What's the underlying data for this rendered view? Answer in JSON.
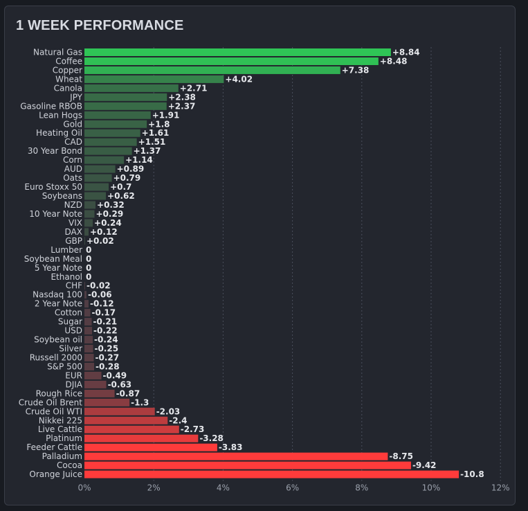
{
  "header": {
    "title": "1 WEEK PERFORMANCE"
  },
  "colors": {
    "positive_max": "#2ed158",
    "positive_min": "#3b4a42",
    "negative_min": "#4a3d44",
    "negative_max": "#ff3b3b",
    "grid": "#4a4f5c",
    "background": "#23262e"
  },
  "chart_data": {
    "type": "bar",
    "orientation": "horizontal",
    "title": "1 WEEK PERFORMANCE",
    "xlabel": "",
    "ylabel": "",
    "xlim": [
      0,
      12
    ],
    "x_ticks": [
      "0%",
      "2%",
      "4%",
      "6%",
      "8%",
      "10%",
      "12%"
    ],
    "grid": "vertical dashed",
    "categories": [
      "Natural Gas",
      "Coffee",
      "Copper",
      "Wheat",
      "Canola",
      "JPY",
      "Gasoline RBOB",
      "Lean Hogs",
      "Gold",
      "Heating Oil",
      "CAD",
      "30 Year Bond",
      "Corn",
      "AUD",
      "Oats",
      "Euro Stoxx 50",
      "Soybeans",
      "NZD",
      "10 Year Note",
      "VIX",
      "DAX",
      "GBP",
      "Lumber",
      "Soybean Meal",
      "5 Year Note",
      "Ethanol",
      "CHF",
      "Nasdaq 100",
      "2 Year Note",
      "Cotton",
      "Sugar",
      "USD",
      "Soybean oil",
      "Silver",
      "Russell 2000",
      "S&P 500",
      "EUR",
      "DJIA",
      "Rough Rice",
      "Crude Oil Brent",
      "Crude Oil WTI",
      "Nikkei 225",
      "Live Cattle",
      "Platinum",
      "Feeder Cattle",
      "Palladium",
      "Cocoa",
      "Orange Juice"
    ],
    "values": [
      8.84,
      8.48,
      7.38,
      4.02,
      2.71,
      2.38,
      2.37,
      1.91,
      1.8,
      1.61,
      1.51,
      1.37,
      1.14,
      0.89,
      0.79,
      0.7,
      0.62,
      0.32,
      0.29,
      0.24,
      0.12,
      0.02,
      0,
      0,
      0,
      0,
      -0.02,
      -0.06,
      -0.12,
      -0.17,
      -0.21,
      -0.22,
      -0.24,
      -0.25,
      -0.27,
      -0.28,
      -0.49,
      -0.63,
      -0.87,
      -1.3,
      -2.03,
      -2.4,
      -2.73,
      -3.28,
      -3.83,
      -8.75,
      -9.42,
      -10.8
    ],
    "value_labels": [
      "+8.84",
      "+8.48",
      "+7.38",
      "+4.02",
      "+2.71",
      "+2.38",
      "+2.37",
      "+1.91",
      "+1.8",
      "+1.61",
      "+1.51",
      "+1.37",
      "+1.14",
      "+0.89",
      "+0.79",
      "+0.7",
      "+0.62",
      "+0.32",
      "+0.29",
      "+0.24",
      "+0.12",
      "+0.02",
      "0",
      "0",
      "0",
      "0",
      "-0.02",
      "-0.06",
      "-0.12",
      "-0.17",
      "-0.21",
      "-0.22",
      "-0.24",
      "-0.25",
      "-0.27",
      "-0.28",
      "-0.49",
      "-0.63",
      "-0.87",
      "-1.3",
      "-2.03",
      "-2.4",
      "-2.73",
      "-3.28",
      "-3.83",
      "-8.75",
      "-9.42",
      "-10.8"
    ],
    "note_bar_length": "absolute value"
  }
}
